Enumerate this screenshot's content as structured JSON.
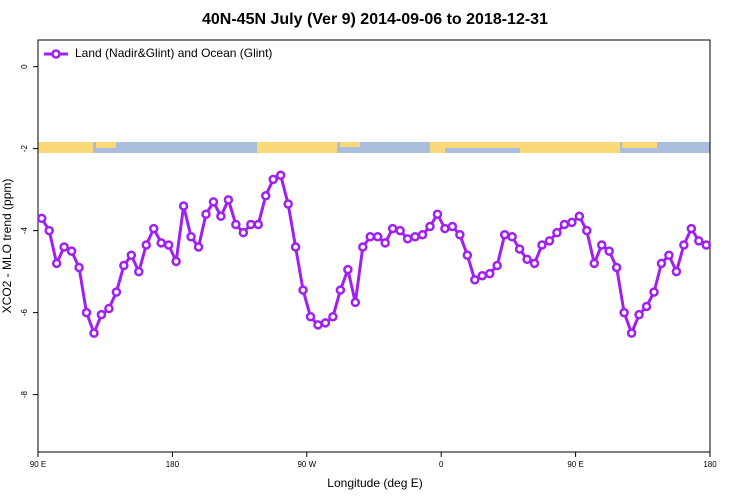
{
  "chart_data": {
    "type": "line",
    "title": "40N-45N July (Ver 9)   2014-09-06 to 2018-12-31",
    "x_label": "Longitude (deg E)",
    "y_label": "XCO2 - MLO trend (ppm)",
    "legend": "topleft",
    "xlim": [
      90,
      540
    ],
    "xticks": [
      {
        "value": 90,
        "label": "90 E"
      },
      {
        "value": 180,
        "label": "180"
      },
      {
        "value": 270,
        "label": "90 W"
      },
      {
        "value": 360,
        "label": "0"
      },
      {
        "value": 450,
        "label": "90 E"
      },
      {
        "value": 540,
        "label": "180"
      }
    ],
    "ylim": [
      -9.4,
      0.65
    ],
    "yticks": [
      0,
      -2,
      -4,
      -6,
      -8
    ],
    "x": [
      92.5,
      97.5,
      102.5,
      107.5,
      112.5,
      117.5,
      122.5,
      127.5,
      132.5,
      137.5,
      142.5,
      147.5,
      152.5,
      157.5,
      162.5,
      167.5,
      172.5,
      177.5,
      182.5,
      187.5,
      192.5,
      197.5,
      202.5,
      207.5,
      212.5,
      217.5,
      222.5,
      227.5,
      232.5,
      237.5,
      242.5,
      247.5,
      252.5,
      257.5,
      262.5,
      267.5,
      272.5,
      277.5,
      282.5,
      287.5,
      292.5,
      297.5,
      302.5,
      307.5,
      312.5,
      317.5,
      322.5,
      327.5,
      332.5,
      337.5,
      342.5,
      347.5,
      352.5,
      357.5,
      362.5,
      367.5,
      372.5,
      377.5,
      382.5,
      387.5,
      392.5,
      397.5,
      402.5,
      407.5,
      412.5,
      417.5,
      422.5,
      427.5,
      432.5,
      437.5,
      442.5,
      447.5,
      452.5,
      457.5,
      462.5,
      467.5,
      472.5,
      477.5,
      482.5,
      487.5,
      492.5,
      497.5,
      502.5,
      507.5,
      512.5,
      517.5,
      522.5,
      527.5,
      532.5,
      537.5
    ],
    "series": [
      {
        "name": "Land (Nadir&Glint) and Ocean (Glint)",
        "color": "#a020f0",
        "values": [
          -3.7,
          -4.0,
          -4.8,
          -4.4,
          -4.5,
          -4.9,
          -6.0,
          -6.5,
          -6.05,
          -5.9,
          -5.5,
          -4.85,
          -4.6,
          -5.0,
          -4.35,
          -3.95,
          -4.3,
          -4.35,
          -4.75,
          -3.4,
          -4.15,
          -4.4,
          -3.6,
          -3.3,
          -3.65,
          -3.25,
          -3.85,
          -4.05,
          -3.85,
          -3.85,
          -3.15,
          -2.75,
          -2.65,
          -3.35,
          -4.4,
          -5.45,
          -6.1,
          -6.3,
          -6.25,
          -6.1,
          -5.45,
          -4.95,
          -5.75,
          -4.4,
          -4.15,
          -4.15,
          -4.3,
          -3.95,
          -4.0,
          -4.2,
          -4.15,
          -4.1,
          -3.9,
          -3.6,
          -3.95,
          -3.9,
          -4.1,
          -4.6,
          -5.2,
          -5.1,
          -5.05,
          -4.85,
          -4.1,
          -4.15,
          -4.45,
          -4.7,
          -4.8,
          -4.35,
          -4.25,
          -4.05,
          -3.85,
          -3.8,
          -3.65,
          -4.0,
          -4.8,
          -4.35,
          -4.5,
          -4.9,
          -6.0,
          -6.5,
          -6.05,
          -5.85,
          -5.5,
          -4.8,
          -4.6,
          -5.0,
          -4.35,
          -3.95,
          -4.25,
          -4.35
        ]
      }
    ]
  }
}
